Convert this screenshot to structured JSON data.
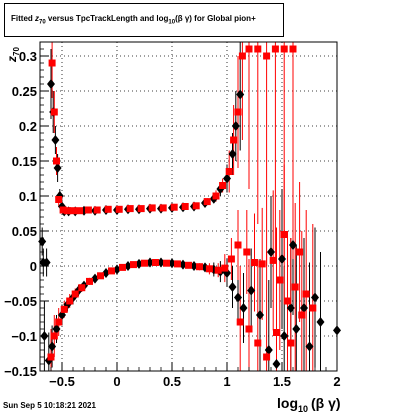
{
  "title": {
    "prefix": "Fitted  ",
    "z_main": "z",
    "z_sub": "70",
    "middle": "  versus TpcTrackLength and log",
    "log_sub": "10",
    "suffix": "(β  γ) for Global pion+"
  },
  "footer": "Sun Sep  5 10:18:21 2021",
  "chart_data": {
    "type": "scatter",
    "title": "Fitted z70 versus TpcTrackLength and log10(β γ) for Global pion+",
    "xlabel_main": "log",
    "xlabel_sub": "10",
    "xlabel_rest": "(β γ)",
    "ylabel_main": "z",
    "ylabel_sub": "70",
    "xlim": [
      -0.7,
      2.0
    ],
    "ylim": [
      -0.15,
      0.32
    ],
    "grid": true,
    "x_ticks": [
      -0.5,
      0,
      0.5,
      1,
      1.5,
      2
    ],
    "x_tick_labels": [
      "−0.5",
      "0",
      "0.5",
      "1",
      "1.5",
      "2"
    ],
    "y_ticks": [
      -0.15,
      -0.1,
      -0.05,
      0,
      0.05,
      0.1,
      0.15,
      0.2,
      0.25,
      0.3
    ],
    "y_tick_labels": [
      "−0.15",
      "−0.1",
      "−0.05",
      "0",
      "0.05",
      "0.1",
      "0.15",
      "0.2",
      "0.25",
      "0.3"
    ],
    "colors": {
      "black": "#000000",
      "red": "#ff0000"
    },
    "series": [
      {
        "color": "black",
        "marker": "diamond",
        "points": [
          {
            "x": -0.68,
            "y": 0.035,
            "err": 0.02
          },
          {
            "x": -0.67,
            "y": 0.005,
            "err": 0.02
          },
          {
            "x": -0.64,
            "y": 0.005,
            "err": 0.02
          },
          {
            "x": -0.6,
            "y": 0.26,
            "err": 0.05
          },
          {
            "x": -0.58,
            "y": 0.22,
            "err": 0.03
          },
          {
            "x": -0.56,
            "y": 0.18,
            "err": 0.02
          },
          {
            "x": -0.54,
            "y": 0.14,
            "err": 0.02
          },
          {
            "x": -0.52,
            "y": 0.1,
            "err": 0.01
          },
          {
            "x": -0.5,
            "y": 0.085,
            "err": 0.01
          },
          {
            "x": -0.48,
            "y": 0.078,
            "err": 0.005
          },
          {
            "x": -0.44,
            "y": 0.078,
            "err": 0.004
          },
          {
            "x": -0.38,
            "y": 0.078,
            "err": 0.004
          },
          {
            "x": -0.3,
            "y": 0.079,
            "err": 0.003
          },
          {
            "x": -0.2,
            "y": 0.079,
            "err": 0.003
          },
          {
            "x": -0.1,
            "y": 0.08,
            "err": 0.003
          },
          {
            "x": 0.0,
            "y": 0.08,
            "err": 0.003
          },
          {
            "x": 0.1,
            "y": 0.081,
            "err": 0.003
          },
          {
            "x": 0.2,
            "y": 0.081,
            "err": 0.003
          },
          {
            "x": 0.3,
            "y": 0.082,
            "err": 0.003
          },
          {
            "x": 0.4,
            "y": 0.082,
            "err": 0.003
          },
          {
            "x": 0.5,
            "y": 0.083,
            "err": 0.003
          },
          {
            "x": 0.6,
            "y": 0.084,
            "err": 0.003
          },
          {
            "x": 0.7,
            "y": 0.085,
            "err": 0.004
          },
          {
            "x": 0.8,
            "y": 0.09,
            "err": 0.005
          },
          {
            "x": 0.88,
            "y": 0.096,
            "err": 0.006
          },
          {
            "x": 0.94,
            "y": 0.11,
            "err": 0.01
          },
          {
            "x": 1.0,
            "y": 0.125,
            "err": 0.02
          },
          {
            "x": 1.05,
            "y": 0.16,
            "err": 0.03
          },
          {
            "x": 1.08,
            "y": 0.2,
            "err": 0.05
          },
          {
            "x": 1.12,
            "y": 0.245,
            "err": 0.08
          },
          {
            "x": -0.66,
            "y": -0.1,
            "err": 0.05
          },
          {
            "x": -0.62,
            "y": -0.135,
            "err": 0.04
          },
          {
            "x": -0.59,
            "y": -0.115,
            "err": 0.03
          },
          {
            "x": -0.55,
            "y": -0.09,
            "err": 0.02
          },
          {
            "x": -0.5,
            "y": -0.07,
            "err": 0.015
          },
          {
            "x": -0.45,
            "y": -0.055,
            "err": 0.01
          },
          {
            "x": -0.4,
            "y": -0.045,
            "err": 0.01
          },
          {
            "x": -0.35,
            "y": -0.035,
            "err": 0.008
          },
          {
            "x": -0.3,
            "y": -0.028,
            "err": 0.006
          },
          {
            "x": -0.2,
            "y": -0.018,
            "err": 0.005
          },
          {
            "x": -0.1,
            "y": -0.01,
            "err": 0.004
          },
          {
            "x": 0.0,
            "y": -0.005,
            "err": 0.004
          },
          {
            "x": 0.1,
            "y": 0.0,
            "err": 0.003
          },
          {
            "x": 0.2,
            "y": 0.003,
            "err": 0.003
          },
          {
            "x": 0.3,
            "y": 0.005,
            "err": 0.003
          },
          {
            "x": 0.4,
            "y": 0.005,
            "err": 0.003
          },
          {
            "x": 0.5,
            "y": 0.004,
            "err": 0.003
          },
          {
            "x": 0.6,
            "y": 0.002,
            "err": 0.004
          },
          {
            "x": 0.7,
            "y": 0.0,
            "err": 0.004
          },
          {
            "x": 0.8,
            "y": -0.002,
            "err": 0.005
          },
          {
            "x": 0.88,
            "y": -0.005,
            "err": 0.01
          },
          {
            "x": 0.94,
            "y": -0.008,
            "err": 0.015
          },
          {
            "x": 1.0,
            "y": -0.01,
            "err": 0.02
          },
          {
            "x": 1.05,
            "y": -0.03,
            "err": 0.03
          },
          {
            "x": 1.1,
            "y": -0.045,
            "err": 0.04
          },
          {
            "x": 1.15,
            "y": -0.06,
            "err": 0.05
          },
          {
            "x": 1.22,
            "y": -0.035,
            "err": 0.06
          },
          {
            "x": 1.3,
            "y": -0.07,
            "err": 0.08
          },
          {
            "x": 1.38,
            "y": -0.12,
            "err": 0.1
          },
          {
            "x": 1.45,
            "y": -0.14,
            "err": 0.12
          },
          {
            "x": 1.52,
            "y": -0.1,
            "err": 0.1
          },
          {
            "x": 1.58,
            "y": -0.06,
            "err": 0.1
          },
          {
            "x": 1.63,
            "y": -0.09,
            "err": 0.12
          },
          {
            "x": 1.7,
            "y": -0.06,
            "err": 0.1
          },
          {
            "x": 1.75,
            "y": -0.115,
            "err": 0.12
          },
          {
            "x": 1.8,
            "y": -0.045,
            "err": 0.1
          },
          {
            "x": 1.85,
            "y": -0.08,
            "err": 0.1
          },
          {
            "x": 2.0,
            "y": -0.092,
            "err": 0.1
          },
          {
            "x": 1.4,
            "y": 0.02,
            "err": 0.08
          },
          {
            "x": 1.5,
            "y": 0.01,
            "err": 0.1
          },
          {
            "x": 1.6,
            "y": 0.03,
            "err": 0.1
          }
        ]
      },
      {
        "color": "red",
        "marker": "square",
        "points": [
          {
            "x": -0.59,
            "y": 0.29,
            "err": 0.05
          },
          {
            "x": -0.57,
            "y": 0.22,
            "err": 0.03
          },
          {
            "x": -0.55,
            "y": 0.15,
            "err": 0.02
          },
          {
            "x": -0.53,
            "y": 0.095,
            "err": 0.01
          },
          {
            "x": -0.49,
            "y": 0.08,
            "err": 0.005
          },
          {
            "x": -0.45,
            "y": 0.079,
            "err": 0.004
          },
          {
            "x": -0.4,
            "y": 0.079,
            "err": 0.004
          },
          {
            "x": -0.34,
            "y": 0.079,
            "err": 0.003
          },
          {
            "x": -0.26,
            "y": 0.08,
            "err": 0.003
          },
          {
            "x": -0.18,
            "y": 0.08,
            "err": 0.003
          },
          {
            "x": -0.08,
            "y": 0.081,
            "err": 0.003
          },
          {
            "x": 0.02,
            "y": 0.081,
            "err": 0.003
          },
          {
            "x": 0.12,
            "y": 0.082,
            "err": 0.003
          },
          {
            "x": 0.22,
            "y": 0.082,
            "err": 0.003
          },
          {
            "x": 0.32,
            "y": 0.083,
            "err": 0.003
          },
          {
            "x": 0.42,
            "y": 0.083,
            "err": 0.003
          },
          {
            "x": 0.52,
            "y": 0.084,
            "err": 0.003
          },
          {
            "x": 0.62,
            "y": 0.085,
            "err": 0.003
          },
          {
            "x": 0.72,
            "y": 0.086,
            "err": 0.004
          },
          {
            "x": 0.82,
            "y": 0.092,
            "err": 0.005
          },
          {
            "x": 0.9,
            "y": 0.1,
            "err": 0.008
          },
          {
            "x": 0.96,
            "y": 0.115,
            "err": 0.01
          },
          {
            "x": 1.02,
            "y": 0.135,
            "err": 0.03
          },
          {
            "x": 1.06,
            "y": 0.18,
            "err": 0.05
          },
          {
            "x": 1.1,
            "y": 0.22,
            "err": 0.08
          },
          {
            "x": 1.14,
            "y": 0.3,
            "err": 0.12
          },
          {
            "x": 1.2,
            "y": 0.31,
            "err": 0.2
          },
          {
            "x": 1.28,
            "y": 0.31,
            "err": 0.25
          },
          {
            "x": 1.36,
            "y": 0.3,
            "err": 0.3
          },
          {
            "x": 1.44,
            "y": 0.31,
            "err": 0.3
          },
          {
            "x": 1.52,
            "y": 0.31,
            "err": 0.3
          },
          {
            "x": 1.6,
            "y": 0.31,
            "err": 0.3
          },
          {
            "x": -0.6,
            "y": -0.13,
            "err": 0.04
          },
          {
            "x": -0.57,
            "y": -0.1,
            "err": 0.03
          },
          {
            "x": -0.53,
            "y": -0.08,
            "err": 0.02
          },
          {
            "x": -0.48,
            "y": -0.062,
            "err": 0.012
          },
          {
            "x": -0.43,
            "y": -0.05,
            "err": 0.01
          },
          {
            "x": -0.38,
            "y": -0.04,
            "err": 0.008
          },
          {
            "x": -0.32,
            "y": -0.031,
            "err": 0.006
          },
          {
            "x": -0.25,
            "y": -0.022,
            "err": 0.005
          },
          {
            "x": -0.15,
            "y": -0.014,
            "err": 0.004
          },
          {
            "x": -0.05,
            "y": -0.007,
            "err": 0.004
          },
          {
            "x": 0.05,
            "y": -0.002,
            "err": 0.003
          },
          {
            "x": 0.15,
            "y": 0.002,
            "err": 0.003
          },
          {
            "x": 0.25,
            "y": 0.004,
            "err": 0.003
          },
          {
            "x": 0.35,
            "y": 0.005,
            "err": 0.003
          },
          {
            "x": 0.45,
            "y": 0.004,
            "err": 0.003
          },
          {
            "x": 0.55,
            "y": 0.003,
            "err": 0.003
          },
          {
            "x": 0.65,
            "y": 0.001,
            "err": 0.004
          },
          {
            "x": 0.75,
            "y": -0.001,
            "err": 0.005
          },
          {
            "x": 0.84,
            "y": -0.004,
            "err": 0.008
          },
          {
            "x": 0.92,
            "y": -0.006,
            "err": 0.01
          },
          {
            "x": 0.98,
            "y": -0.003,
            "err": 0.02
          },
          {
            "x": 1.04,
            "y": 0.01,
            "err": 0.03
          },
          {
            "x": 1.1,
            "y": 0.03,
            "err": 0.05
          },
          {
            "x": 1.18,
            "y": 0.02,
            "err": 0.06
          },
          {
            "x": 1.25,
            "y": 0.005,
            "err": 0.07
          },
          {
            "x": 1.32,
            "y": 0.003,
            "err": 0.08
          },
          {
            "x": 1.42,
            "y": 0.008,
            "err": 0.1
          },
          {
            "x": 1.48,
            "y": -0.02,
            "err": 0.1
          },
          {
            "x": 1.55,
            "y": -0.05,
            "err": 0.1
          },
          {
            "x": 1.62,
            "y": -0.03,
            "err": 0.12
          },
          {
            "x": 1.68,
            "y": -0.07,
            "err": 0.12
          },
          {
            "x": 1.72,
            "y": -0.04,
            "err": 0.12
          },
          {
            "x": 1.78,
            "y": -0.06,
            "err": 0.12
          },
          {
            "x": 1.12,
            "y": -0.08,
            "err": 0.08
          },
          {
            "x": 1.2,
            "y": -0.09,
            "err": 0.1
          },
          {
            "x": 1.28,
            "y": -0.11,
            "err": 0.12
          },
          {
            "x": 1.36,
            "y": -0.13,
            "err": 0.15
          },
          {
            "x": 1.45,
            "y": -0.095,
            "err": 0.15
          },
          {
            "x": 1.58,
            "y": -0.11,
            "err": 0.15
          },
          {
            "x": 1.52,
            "y": 0.045,
            "err": 0.1
          },
          {
            "x": 1.66,
            "y": 0.02,
            "err": 0.1
          }
        ]
      }
    ]
  }
}
